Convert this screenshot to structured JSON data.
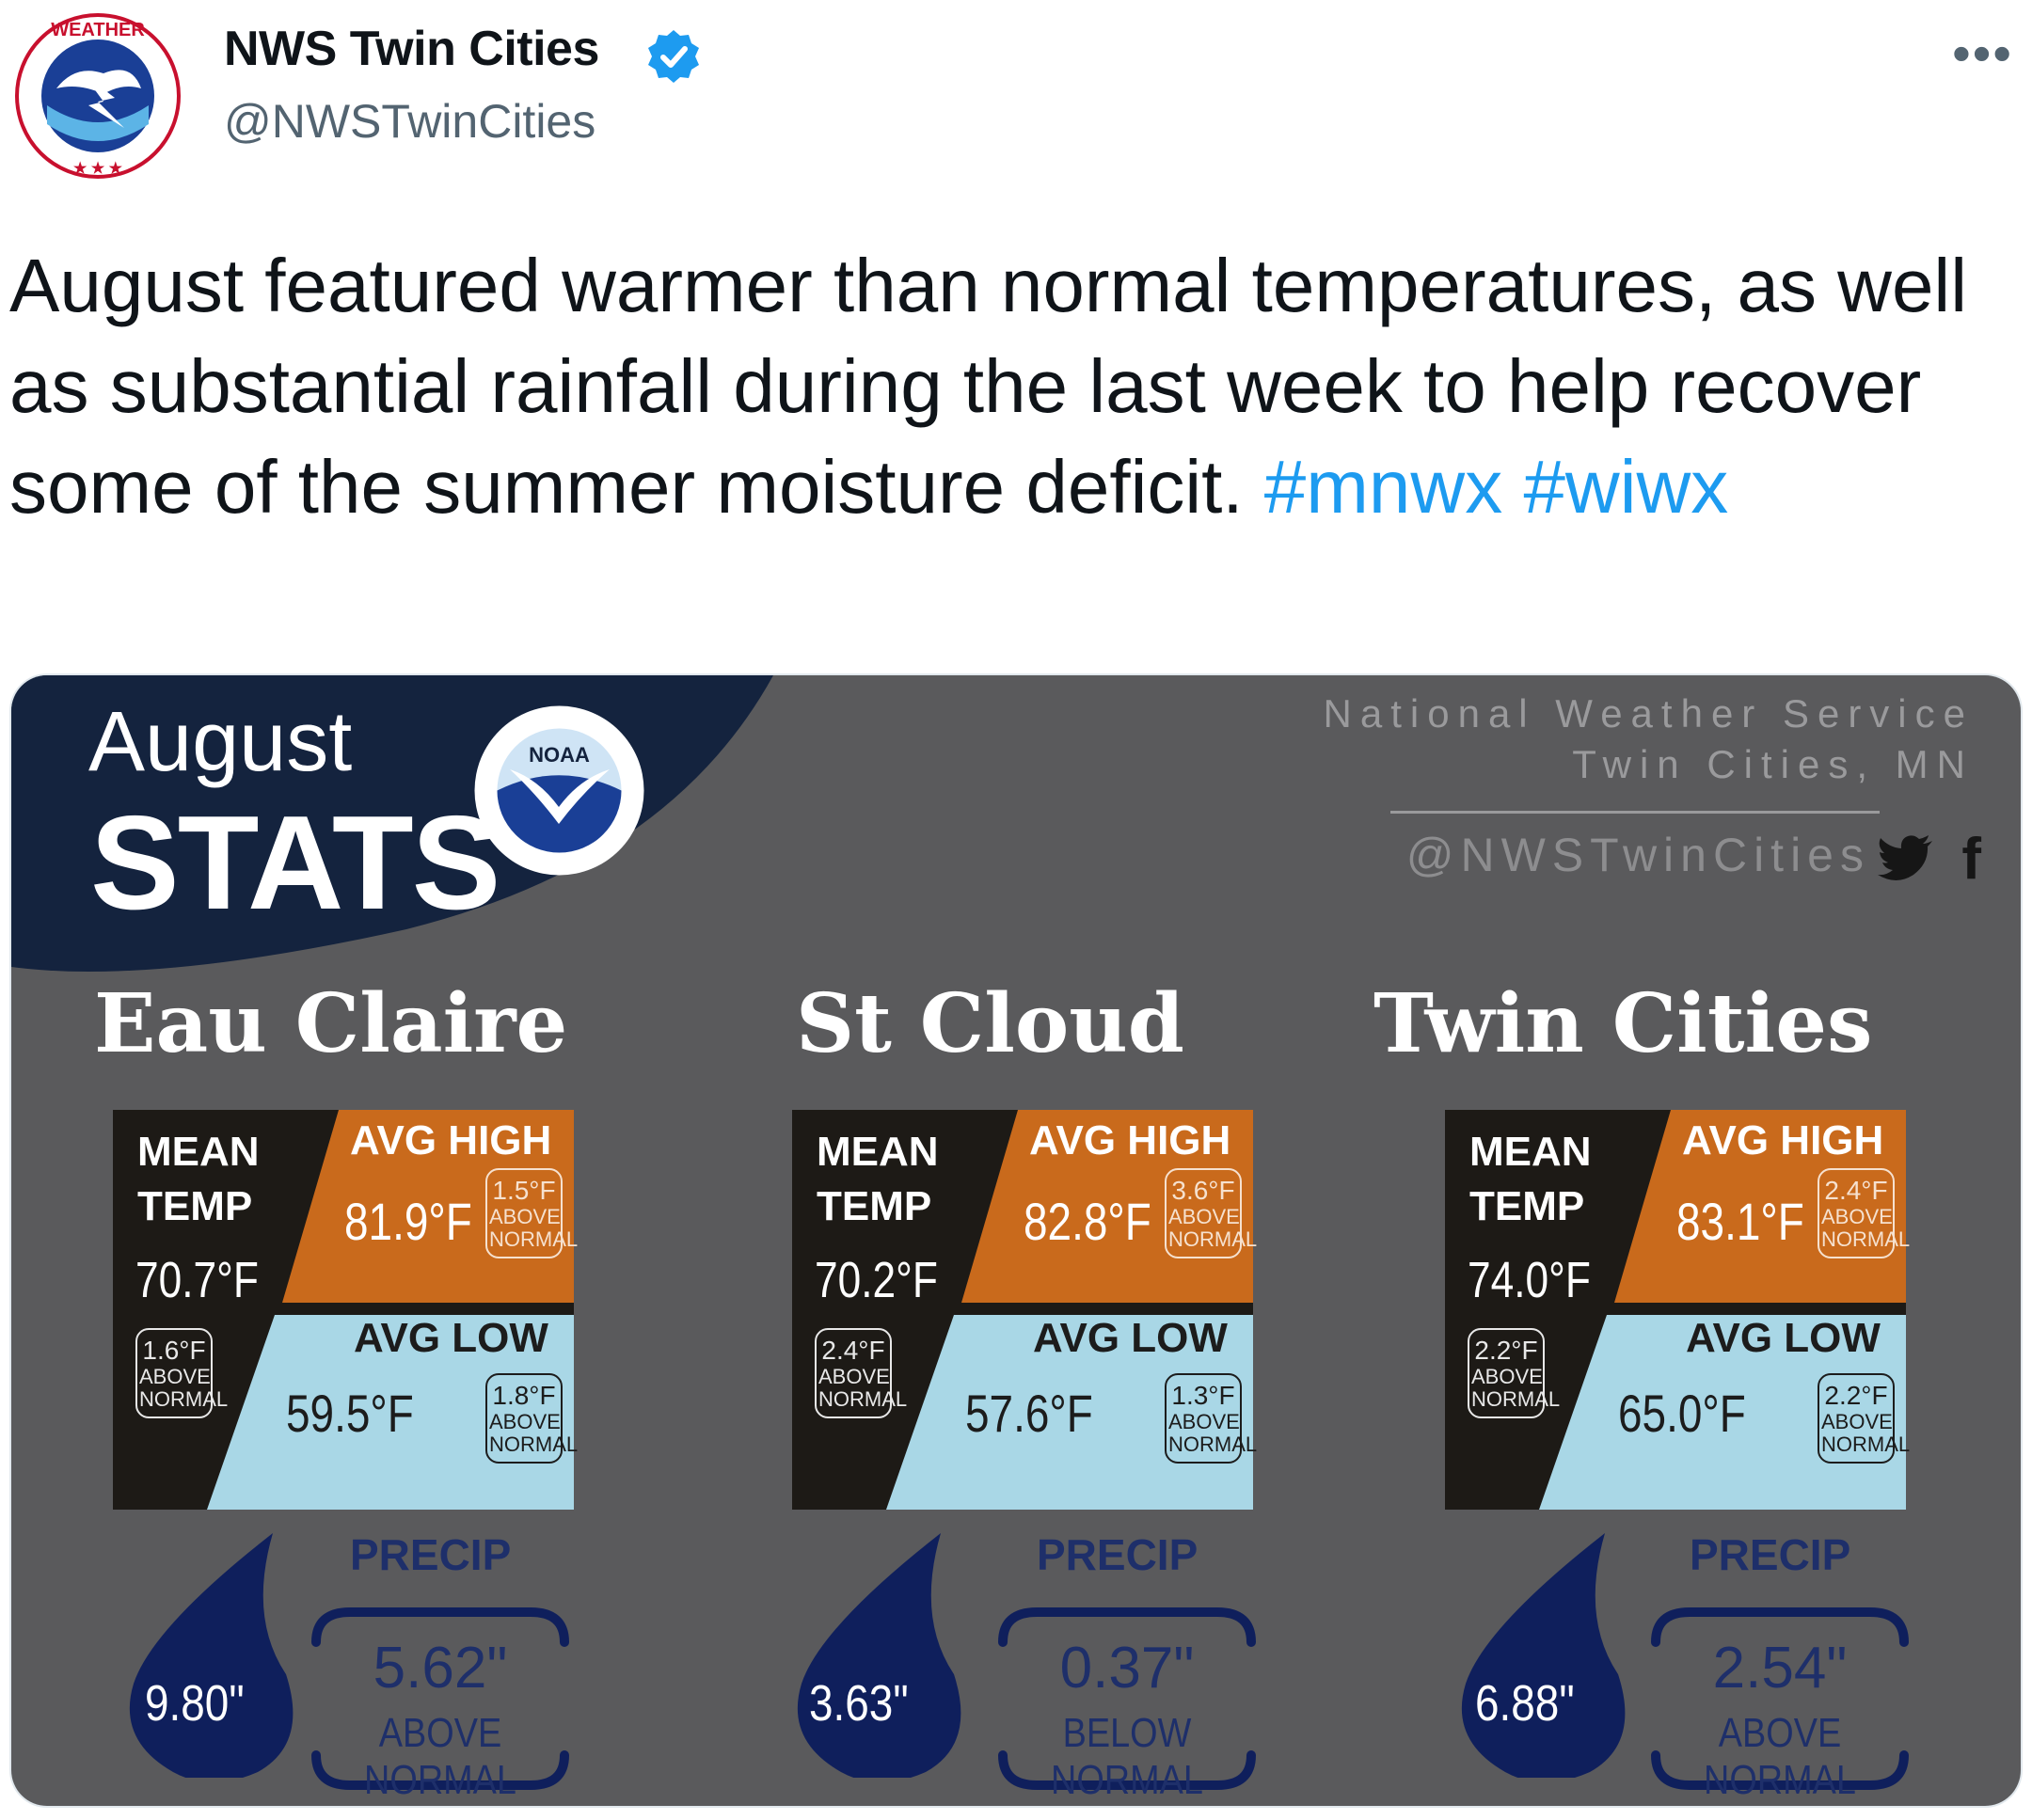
{
  "tweet": {
    "display_name": "NWS Twin Cities",
    "handle": "@NWSTwinCities",
    "more_label": "•••",
    "text": "August featured warmer than normal temperatures, as well as substantial rainfall during the last week to help recover some of the summer moisture deficit.",
    "hashtags": [
      "#mnwx",
      "#wiwx"
    ]
  },
  "graphic": {
    "month": "August",
    "heading": "STATS",
    "noaa_label": "NOAA",
    "org_line1": "National Weather Service",
    "org_line2": "Twin Cities, MN",
    "social_handle": "@NWSTwinCities",
    "facebook_glyph": "f",
    "labels": {
      "mean": "MEAN",
      "temp": "TEMP",
      "avg_high": "AVG HIGH",
      "avg_low": "AVG LOW",
      "above": "ABOVE",
      "normal": "NORMAL",
      "precip": "PRECIP"
    },
    "cities": [
      {
        "name": "Eau Claire",
        "mean_temp": "70.7°F",
        "mean_dev": "1.6°F",
        "avg_high": "81.9°F",
        "high_dev": "1.5°F",
        "avg_low": "59.5°F",
        "low_dev": "1.8°F",
        "precip_total": "9.80\"",
        "precip_dev": "5.62\"",
        "precip_dev_text": "ABOVE NORMAL"
      },
      {
        "name": "St Cloud",
        "mean_temp": "70.2°F",
        "mean_dev": "2.4°F",
        "avg_high": "82.8°F",
        "high_dev": "3.6°F",
        "avg_low": "57.6°F",
        "low_dev": "1.3°F",
        "precip_total": "3.63\"",
        "precip_dev": "0.37\"",
        "precip_dev_text": "BELOW NORMAL"
      },
      {
        "name": "Twin Cities",
        "mean_temp": "74.0°F",
        "mean_dev": "2.2°F",
        "avg_high": "83.1°F",
        "high_dev": "2.4°F",
        "avg_low": "65.0°F",
        "low_dev": "2.2°F",
        "precip_total": "6.88\"",
        "precip_dev": "2.54\"",
        "precip_dev_text": "ABOVE NORMAL"
      }
    ],
    "colors": {
      "background": "#5a5a5c",
      "banner": "#14233e",
      "mean_box": "#1d1a16",
      "high_box": "#c96a1c",
      "low_box": "#a9d7e6",
      "precip": "#0f1f5c"
    }
  }
}
